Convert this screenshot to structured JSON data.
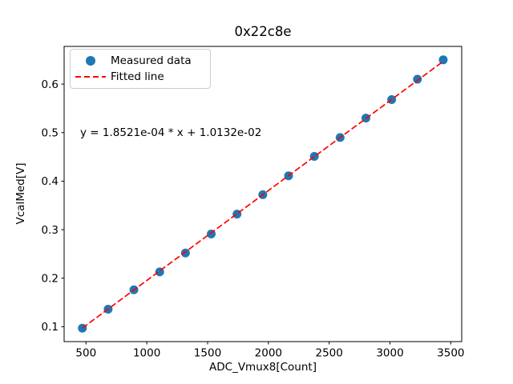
{
  "chart_data": {
    "type": "scatter",
    "title": "0x22c8e",
    "xlabel": "ADC_Vmux8[Count]",
    "ylabel": "VcalMed[V]",
    "xlim": [
      320,
      3590
    ],
    "ylim": [
      0.0693,
      0.6777
    ],
    "grid": false,
    "xticks": [
      500,
      1000,
      1500,
      2000,
      2500,
      3000,
      3500
    ],
    "xtick_labels": [
      "500",
      "1000",
      "1500",
      "2000",
      "2500",
      "3000",
      "3500"
    ],
    "yticks": [
      0.1,
      0.2,
      0.3,
      0.4,
      0.5,
      0.6
    ],
    "ytick_labels": [
      "0.1",
      "0.2",
      "0.3",
      "0.4",
      "0.5",
      "0.6"
    ],
    "series": [
      {
        "name": "Measured data",
        "type": "scatter",
        "color": "#1f77b4",
        "marker": "circle",
        "x": [
          470,
          682,
          894,
          1106,
          1318,
          1530,
          1742,
          1954,
          2166,
          2378,
          2590,
          2802,
          3014,
          3226,
          3438
        ],
        "y": [
          0.097,
          0.136,
          0.176,
          0.213,
          0.252,
          0.291,
          0.332,
          0.372,
          0.411,
          0.451,
          0.49,
          0.53,
          0.568,
          0.61,
          0.65
        ]
      },
      {
        "name": "Fitted line",
        "type": "line",
        "style": "dashed",
        "color": "#ff0000",
        "slope": 0.00018521,
        "intercept": 0.010132,
        "x_start": 470,
        "x_end": 3438
      }
    ],
    "annotation": {
      "text": "y = 1.8521e-04 * x + 1.0132e-02"
    },
    "legend": {
      "position": "upper left",
      "entries": [
        "Measured data",
        "Fitted line"
      ]
    }
  }
}
